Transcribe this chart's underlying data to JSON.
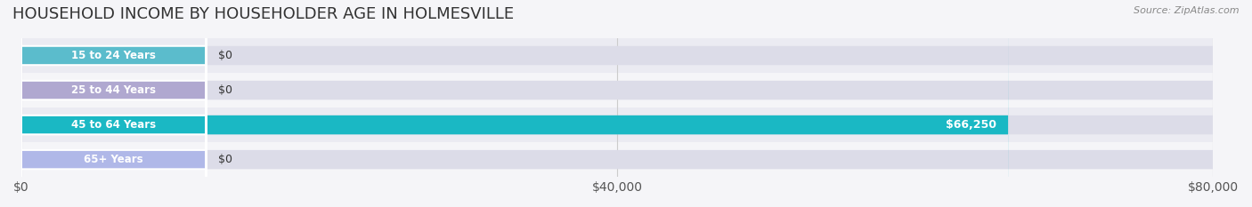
{
  "title": "HOUSEHOLD INCOME BY HOUSEHOLDER AGE IN HOLMESVILLE",
  "source": "Source: ZipAtlas.com",
  "categories": [
    "15 to 24 Years",
    "25 to 44 Years",
    "45 to 64 Years",
    "65+ Years"
  ],
  "values": [
    0,
    0,
    66250,
    0
  ],
  "bar_colors": [
    "#5bbccc",
    "#b0a8d0",
    "#1ab8c4",
    "#b0b8e8"
  ],
  "label_colors": [
    "#333333",
    "#333333",
    "#ffffff",
    "#333333"
  ],
  "bar_bg_color": "#e8e8f0",
  "xlim": [
    0,
    80000
  ],
  "xticks": [
    0,
    40000,
    80000
  ],
  "xtick_labels": [
    "$0",
    "$40,000",
    "$80,000"
  ],
  "value_labels": [
    "$0",
    "$0",
    "$66,250",
    "$0"
  ],
  "title_fontsize": 13,
  "tick_fontsize": 10,
  "background_color": "#f5f5f8",
  "row_colors": [
    "#ebebf2",
    "#f5f5f8",
    "#ebebf2",
    "#f5f5f8"
  ]
}
